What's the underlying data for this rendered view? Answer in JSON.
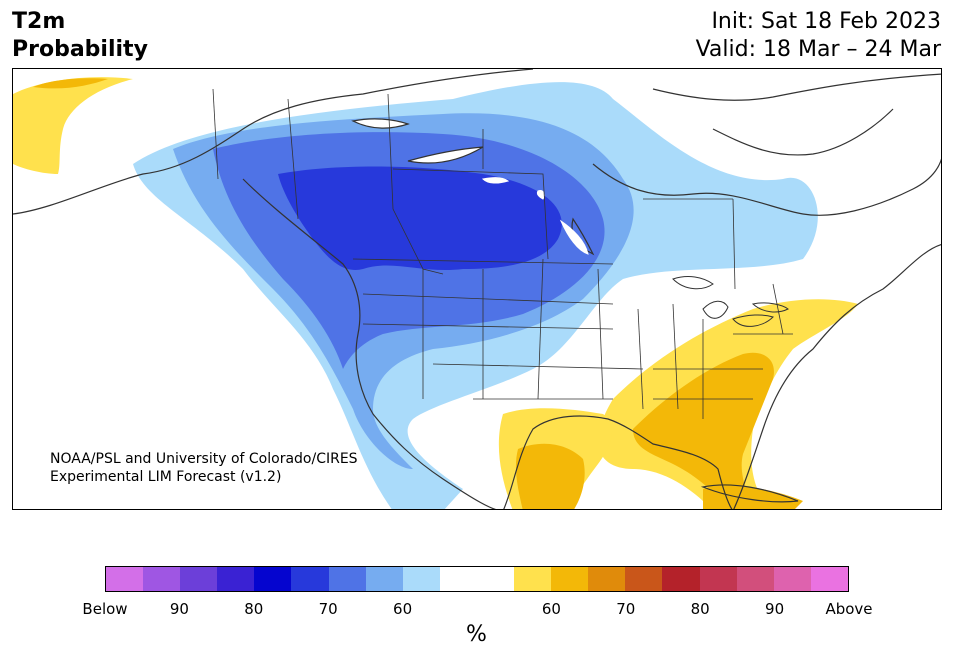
{
  "header": {
    "title_line1": "T2m",
    "title_line2": "Probability",
    "init": "Init: Sat 18 Feb 2023",
    "valid": "Valid: 18 Mar – 24 Mar"
  },
  "credit": {
    "line1": "NOAA/PSL and University of Colorado/CIRES",
    "line2": "Experimental LIM Forecast (v1.2)"
  },
  "colorbar": {
    "colors": [
      "#d36fe8",
      "#9f56e3",
      "#6c3fd9",
      "#3a22d3",
      "#0505cf",
      "#2739db",
      "#4f73e6",
      "#76acf0",
      "#aadbfa",
      "#ffffff",
      "#ffffff",
      "#ffe14d",
      "#f3b808",
      "#e08b0b",
      "#c9561a",
      "#b4222a",
      "#c23651",
      "#d24f7c",
      "#de62ae",
      "#ea72e1"
    ],
    "tick_labels": [
      "Below",
      "90",
      "80",
      "70",
      "60",
      "60",
      "70",
      "80",
      "90",
      "Above"
    ],
    "unit": "%"
  },
  "map": {
    "colors": {
      "cold_60": "#aadbfa",
      "cold_65": "#76acf0",
      "cold_70": "#4f73e6",
      "cold_75": "#2739db",
      "warm_60": "#ffe14d",
      "warm_65": "#f3b808",
      "land_border": "#333333",
      "water": "#ffffff"
    },
    "icons": [
      "coastline-outline",
      "state-borders"
    ]
  }
}
